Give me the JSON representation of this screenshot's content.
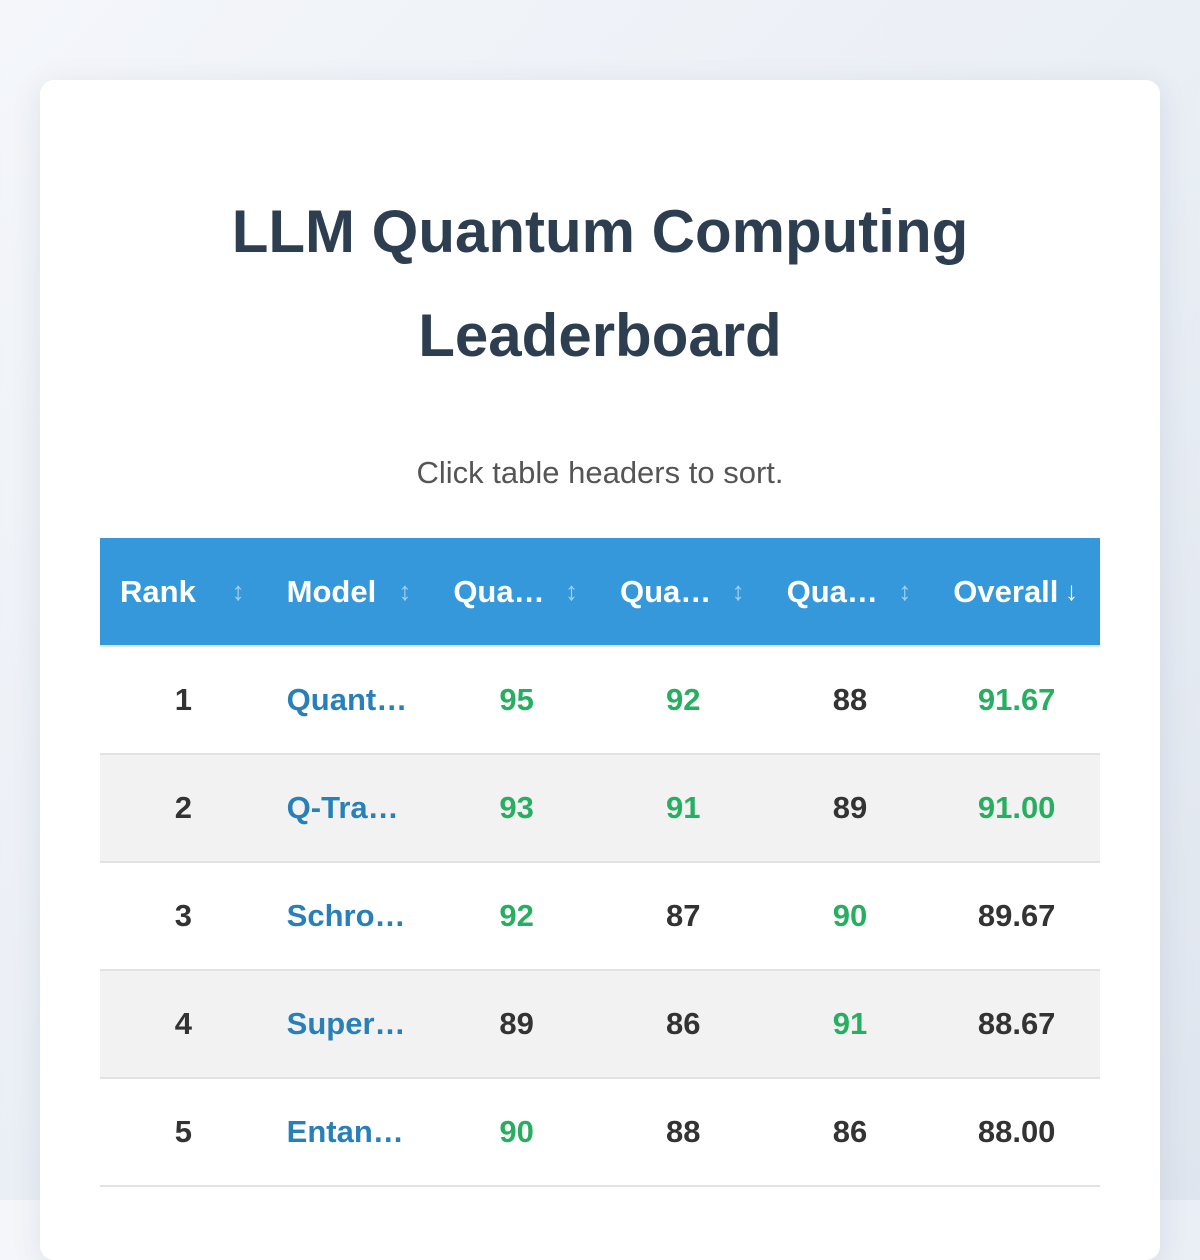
{
  "page": {
    "title_line1": "LLM Quantum Computing",
    "title_line2": "Leaderboard",
    "subtitle": "Click table headers to sort."
  },
  "colors": {
    "header_bg": "#3498db",
    "title": "#2c3e50",
    "model_link": "#2980b9",
    "high_score": "#27ae60",
    "text": "#333333",
    "stripe": "#f2f2f2"
  },
  "table": {
    "headers": [
      {
        "label": "Rank",
        "sort_icon": "↕",
        "sorted": false
      },
      {
        "label": "Model",
        "sort_icon": "↕",
        "sorted": false
      },
      {
        "label": "Quant…",
        "sort_icon": "↕",
        "sorted": false
      },
      {
        "label": "Quant…",
        "sort_icon": "↕",
        "sorted": false
      },
      {
        "label": "Quant…",
        "sort_icon": "↕",
        "sorted": false
      },
      {
        "label": "Overall",
        "sort_icon": "↓",
        "sorted": true
      }
    ],
    "rows": [
      {
        "rank": "1",
        "model": "Quant…",
        "s1": "95",
        "s2": "92",
        "s3": "88",
        "overall": "91.67",
        "hi": [
          true,
          true,
          false,
          true
        ]
      },
      {
        "rank": "2",
        "model": "Q-Tran…",
        "s1": "93",
        "s2": "91",
        "s3": "89",
        "overall": "91.00",
        "hi": [
          true,
          true,
          false,
          true
        ]
      },
      {
        "rank": "3",
        "model": "Schrod…",
        "s1": "92",
        "s2": "87",
        "s3": "90",
        "overall": "89.67",
        "hi": [
          true,
          false,
          true,
          false
        ]
      },
      {
        "rank": "4",
        "model": "Superp…",
        "s1": "89",
        "s2": "86",
        "s3": "91",
        "overall": "88.67",
        "hi": [
          false,
          false,
          true,
          false
        ]
      },
      {
        "rank": "5",
        "model": "Entang…",
        "s1": "90",
        "s2": "88",
        "s3": "86",
        "overall": "88.00",
        "hi": [
          true,
          false,
          false,
          false
        ]
      }
    ]
  }
}
